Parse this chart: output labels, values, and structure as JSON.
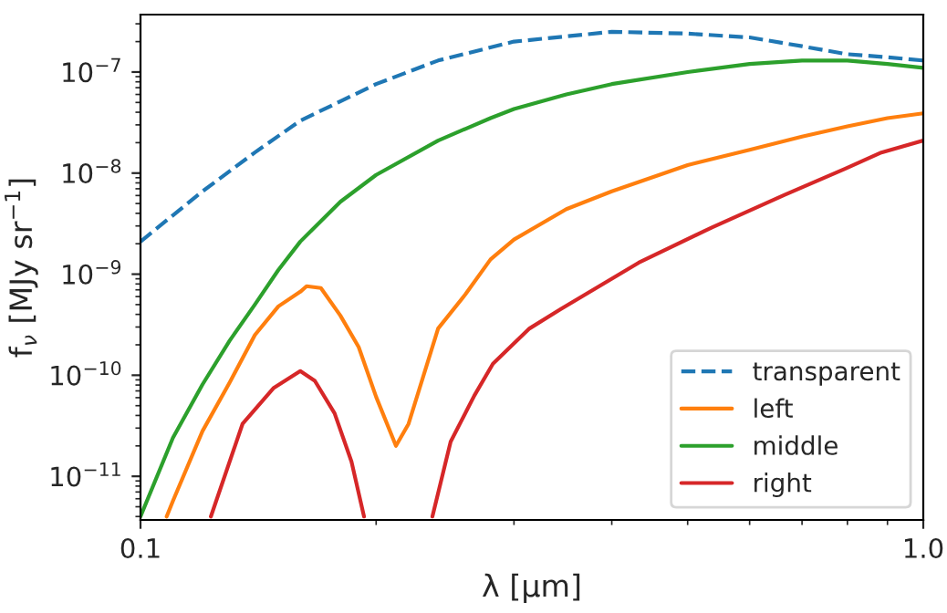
{
  "chart_data": {
    "type": "line",
    "xlabel": "λ [μm]",
    "ylabel": "f$_{ν}$ [MJy sr$^{−1}$]",
    "log": "xy",
    "xlim": [
      0.1,
      1.0
    ],
    "ylim": [
      3.7e-12,
      3.7e-07
    ],
    "xticks": [
      {
        "value": 0.1,
        "label": "0.1"
      },
      {
        "value": 1.0,
        "label": "1.0"
      }
    ],
    "yticks": [
      {
        "value": 1e-11,
        "label": "10$^{−11}$"
      },
      {
        "value": 1e-10,
        "label": "10$^{−10}$"
      },
      {
        "value": 1e-09,
        "label": "10$^{−9}$"
      },
      {
        "value": 1e-08,
        "label": "10$^{−8}$"
      },
      {
        "value": 1e-07,
        "label": "10$^{−7}$"
      }
    ],
    "grid": false,
    "legend": "bottom right",
    "series": [
      {
        "name": "transparent",
        "color": "#1f77b4",
        "line_style": "dashed",
        "x": [
          0.1,
          0.12,
          0.14,
          0.16,
          0.2,
          0.24,
          0.3,
          0.4,
          0.5,
          0.6,
          0.7,
          0.8,
          0.9,
          1.0
        ],
        "values": [
          2.1e-09,
          6.6e-09,
          1.6e-08,
          3.3e-08,
          7.6e-08,
          1.3e-07,
          2e-07,
          2.5e-07,
          2.4e-07,
          2.2e-07,
          1.8e-07,
          1.5e-07,
          1.4e-07,
          1.3e-07
        ]
      },
      {
        "name": "left",
        "color": "#ff7f0e",
        "line_style": "solid",
        "x": [
          0.108,
          0.11,
          0.12,
          0.13,
          0.14,
          0.15,
          0.16,
          0.163,
          0.17,
          0.18,
          0.19,
          0.2,
          0.212,
          0.22,
          0.24,
          0.26,
          0.28,
          0.3,
          0.35,
          0.4,
          0.5,
          0.6,
          0.7,
          0.8,
          0.9,
          1.0
        ],
        "values": [
          4e-12,
          5.7e-12,
          2.8e-11,
          8.5e-11,
          2.5e-10,
          4.8e-10,
          6.7e-10,
          7.6e-10,
          7.3e-10,
          3.9e-10,
          1.9e-10,
          6.1e-11,
          2e-11,
          3.3e-11,
          2.9e-10,
          6.3e-10,
          1.4e-09,
          2.2e-09,
          4.4e-09,
          6.6e-09,
          1.2e-08,
          1.7e-08,
          2.3e-08,
          2.9e-08,
          3.5e-08,
          3.9e-08
        ]
      },
      {
        "name": "middle",
        "color": "#2ca02c",
        "line_style": "solid",
        "x": [
          0.1,
          0.11,
          0.12,
          0.13,
          0.14,
          0.15,
          0.16,
          0.18,
          0.2,
          0.24,
          0.28,
          0.3,
          0.35,
          0.4,
          0.5,
          0.6,
          0.7,
          0.8,
          0.9,
          1.0
        ],
        "values": [
          4e-12,
          2.4e-11,
          8.1e-11,
          2.2e-10,
          5e-10,
          1.1e-09,
          2.1e-09,
          5.2e-09,
          9.6e-09,
          2.1e-08,
          3.5e-08,
          4.3e-08,
          6e-08,
          7.6e-08,
          1e-07,
          1.2e-07,
          1.3e-07,
          1.3e-07,
          1.2e-07,
          1.1e-07
        ]
      },
      {
        "name": "right",
        "color": "#d62728",
        "line_style": "solid",
        "x": [
          0.123,
          0.135,
          0.148,
          0.16,
          0.167,
          0.177,
          0.186,
          0.193,
          0.215,
          0.236,
          0.249,
          0.267,
          0.282,
          0.314,
          0.344,
          0.433,
          0.537,
          0.665,
          0.794,
          0.884,
          1.0
        ],
        "values": [
          4e-12,
          3.3e-11,
          7.5e-11,
          1.1e-10,
          8.8e-11,
          4.2e-11,
          1.4e-11,
          4e-12,
          null,
          4e-12,
          2.2e-11,
          6.3e-11,
          1.3e-10,
          2.9e-10,
          4.5e-10,
          1.3e-09,
          2.9e-09,
          6.1e-09,
          1.1e-08,
          1.6e-08,
          2.1e-08
        ]
      }
    ]
  }
}
